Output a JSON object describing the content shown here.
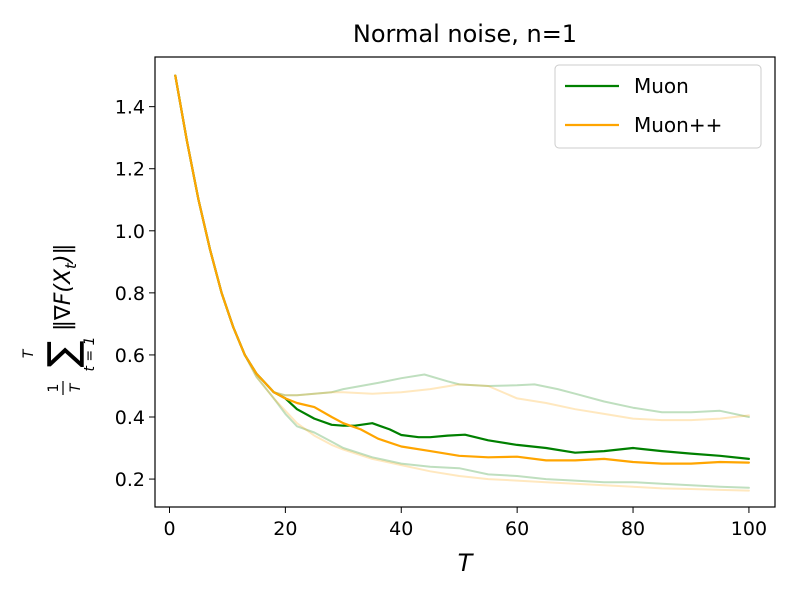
{
  "chart_data": {
    "type": "line",
    "title": "Normal noise, n=1",
    "xlabel": "T",
    "ylabel": "1/T Σ_{t=1}^{T} ‖∇F(X_t)‖",
    "ylabel_parts": {
      "frac_num": "1",
      "frac_den": "T",
      "sum_upper": "T",
      "sum_symbol": "∑",
      "sum_lower": "t = 1",
      "norm_expr": "‖∇F(X",
      "norm_sub": "t",
      "norm_close": ")‖"
    },
    "xlim": [
      -2.5,
      104.5
    ],
    "ylim": [
      0.11,
      1.56
    ],
    "xticks": [
      0,
      20,
      40,
      60,
      80,
      100
    ],
    "yticks": [
      0.2,
      0.4,
      0.6,
      0.8,
      1.0,
      1.2,
      1.4
    ],
    "ytick_labels": [
      "0.2",
      "0.4",
      "0.6",
      "0.8",
      "1.0",
      "1.2",
      "1.4"
    ],
    "legend": {
      "position": "top-right",
      "entries": [
        "Muon",
        "Muon++"
      ]
    },
    "colors": {
      "Muon": "#008000",
      "Muon++": "#FFA500"
    },
    "series": [
      {
        "name": "Muon upper band",
        "band_of": "Muon",
        "color": "#008000",
        "opacity": 0.25,
        "x": [
          1,
          3,
          5,
          7,
          9,
          11,
          13,
          15,
          18,
          20,
          22,
          25,
          28,
          30,
          33,
          36,
          40,
          44,
          48,
          50,
          55,
          60,
          63,
          67,
          70,
          75,
          80,
          85,
          90,
          95,
          100
        ],
        "y": [
          1.5,
          1.29,
          1.1,
          0.94,
          0.8,
          0.69,
          0.6,
          0.54,
          0.48,
          0.47,
          0.47,
          0.475,
          0.48,
          0.49,
          0.5,
          0.51,
          0.525,
          0.537,
          0.515,
          0.505,
          0.5,
          0.502,
          0.505,
          0.49,
          0.475,
          0.45,
          0.43,
          0.415,
          0.415,
          0.42,
          0.4
        ]
      },
      {
        "name": "Muon++ upper band",
        "band_of": "Muon++",
        "color": "#FFA500",
        "opacity": 0.25,
        "x": [
          1,
          3,
          5,
          7,
          9,
          11,
          13,
          15,
          18,
          20,
          22,
          25,
          28,
          30,
          35,
          40,
          45,
          50,
          55,
          60,
          65,
          70,
          75,
          80,
          85,
          90,
          95,
          100
        ],
        "y": [
          1.5,
          1.29,
          1.1,
          0.94,
          0.8,
          0.69,
          0.6,
          0.54,
          0.48,
          0.47,
          0.47,
          0.475,
          0.48,
          0.48,
          0.475,
          0.48,
          0.49,
          0.505,
          0.5,
          0.46,
          0.445,
          0.425,
          0.41,
          0.395,
          0.39,
          0.39,
          0.395,
          0.405
        ]
      },
      {
        "name": "Muon lower band",
        "band_of": "Muon",
        "color": "#008000",
        "opacity": 0.25,
        "x": [
          1,
          3,
          5,
          7,
          9,
          11,
          13,
          15,
          18,
          20,
          22,
          25,
          28,
          30,
          35,
          40,
          45,
          50,
          55,
          60,
          65,
          70,
          75,
          80,
          85,
          90,
          95,
          100
        ],
        "y": [
          1.5,
          1.29,
          1.1,
          0.94,
          0.8,
          0.69,
          0.6,
          0.53,
          0.46,
          0.41,
          0.37,
          0.35,
          0.32,
          0.3,
          0.27,
          0.25,
          0.24,
          0.235,
          0.215,
          0.21,
          0.2,
          0.195,
          0.19,
          0.19,
          0.185,
          0.18,
          0.175,
          0.172
        ]
      },
      {
        "name": "Muon++ lower band",
        "band_of": "Muon++",
        "color": "#FFA500",
        "opacity": 0.25,
        "x": [
          1,
          3,
          5,
          7,
          9,
          11,
          13,
          15,
          18,
          20,
          22,
          25,
          28,
          30,
          35,
          40,
          45,
          50,
          55,
          60,
          65,
          70,
          75,
          80,
          85,
          90,
          95,
          100
        ],
        "y": [
          1.5,
          1.29,
          1.1,
          0.94,
          0.8,
          0.69,
          0.6,
          0.53,
          0.46,
          0.42,
          0.38,
          0.34,
          0.31,
          0.295,
          0.265,
          0.245,
          0.225,
          0.21,
          0.2,
          0.195,
          0.19,
          0.185,
          0.18,
          0.175,
          0.17,
          0.168,
          0.165,
          0.163
        ]
      },
      {
        "name": "Muon",
        "color": "#008000",
        "opacity": 1,
        "x": [
          1,
          3,
          5,
          7,
          9,
          11,
          13,
          15,
          18,
          20,
          22,
          25,
          28,
          30,
          32,
          35,
          38,
          40,
          43,
          45,
          48,
          51,
          55,
          60,
          65,
          70,
          75,
          80,
          85,
          90,
          95,
          100
        ],
        "y": [
          1.5,
          1.29,
          1.1,
          0.94,
          0.8,
          0.69,
          0.6,
          0.54,
          0.48,
          0.46,
          0.425,
          0.395,
          0.375,
          0.372,
          0.372,
          0.38,
          0.36,
          0.342,
          0.335,
          0.335,
          0.34,
          0.343,
          0.325,
          0.31,
          0.3,
          0.285,
          0.29,
          0.3,
          0.29,
          0.282,
          0.275,
          0.265
        ]
      },
      {
        "name": "Muon++",
        "color": "#FFA500",
        "opacity": 1,
        "x": [
          1,
          3,
          5,
          7,
          9,
          11,
          13,
          15,
          18,
          20,
          22,
          25,
          28,
          30,
          33,
          36,
          40,
          45,
          50,
          55,
          60,
          65,
          70,
          75,
          80,
          85,
          90,
          95,
          100
        ],
        "y": [
          1.5,
          1.29,
          1.1,
          0.94,
          0.8,
          0.69,
          0.6,
          0.54,
          0.48,
          0.46,
          0.445,
          0.432,
          0.4,
          0.38,
          0.36,
          0.33,
          0.305,
          0.29,
          0.275,
          0.27,
          0.272,
          0.26,
          0.26,
          0.265,
          0.255,
          0.25,
          0.25,
          0.255,
          0.253
        ]
      }
    ]
  }
}
